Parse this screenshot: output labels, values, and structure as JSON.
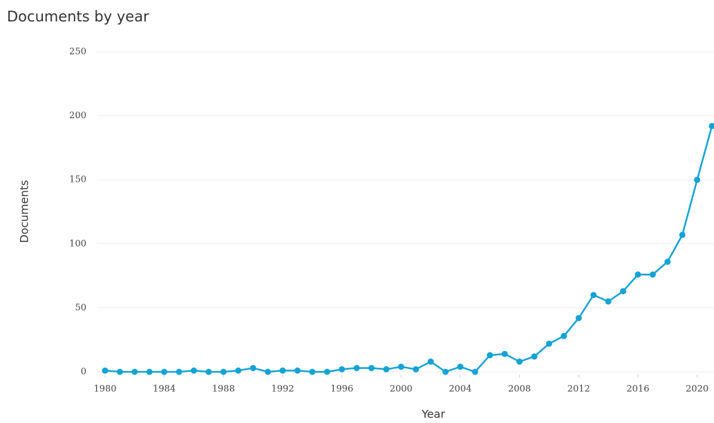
{
  "chart_data": {
    "type": "line",
    "title": "Documents by year",
    "x_label": "Year",
    "y_label": "Documents",
    "x": [
      1980,
      1981,
      1982,
      1983,
      1984,
      1985,
      1986,
      1987,
      1988,
      1989,
      1990,
      1991,
      1992,
      1993,
      1994,
      1995,
      1996,
      1997,
      1998,
      1999,
      2000,
      2001,
      2002,
      2003,
      2004,
      2005,
      2006,
      2007,
      2008,
      2009,
      2010,
      2011,
      2012,
      2013,
      2014,
      2015,
      2016,
      2017,
      2018,
      2019,
      2020,
      2021
    ],
    "series": [
      {
        "name": "Documents",
        "color": "#14a3d4",
        "values": [
          1,
          0,
          0,
          0,
          0,
          0,
          1,
          0,
          0,
          1,
          3,
          0,
          1,
          1,
          0,
          0,
          2,
          3,
          3,
          2,
          4,
          2,
          8,
          0,
          4,
          0,
          13,
          14,
          8,
          12,
          22,
          28,
          42,
          60,
          55,
          63,
          76,
          76,
          86,
          107,
          150,
          192
        ]
      }
    ],
    "xlim": [
      1980,
      2021
    ],
    "xticks": [
      1980,
      1984,
      1988,
      1992,
      1996,
      2000,
      2004,
      2008,
      2012,
      2016,
      2020
    ],
    "ylim": [
      0,
      250
    ],
    "yticks": [
      0,
      50,
      100,
      150,
      200,
      250
    ],
    "grid": true
  }
}
